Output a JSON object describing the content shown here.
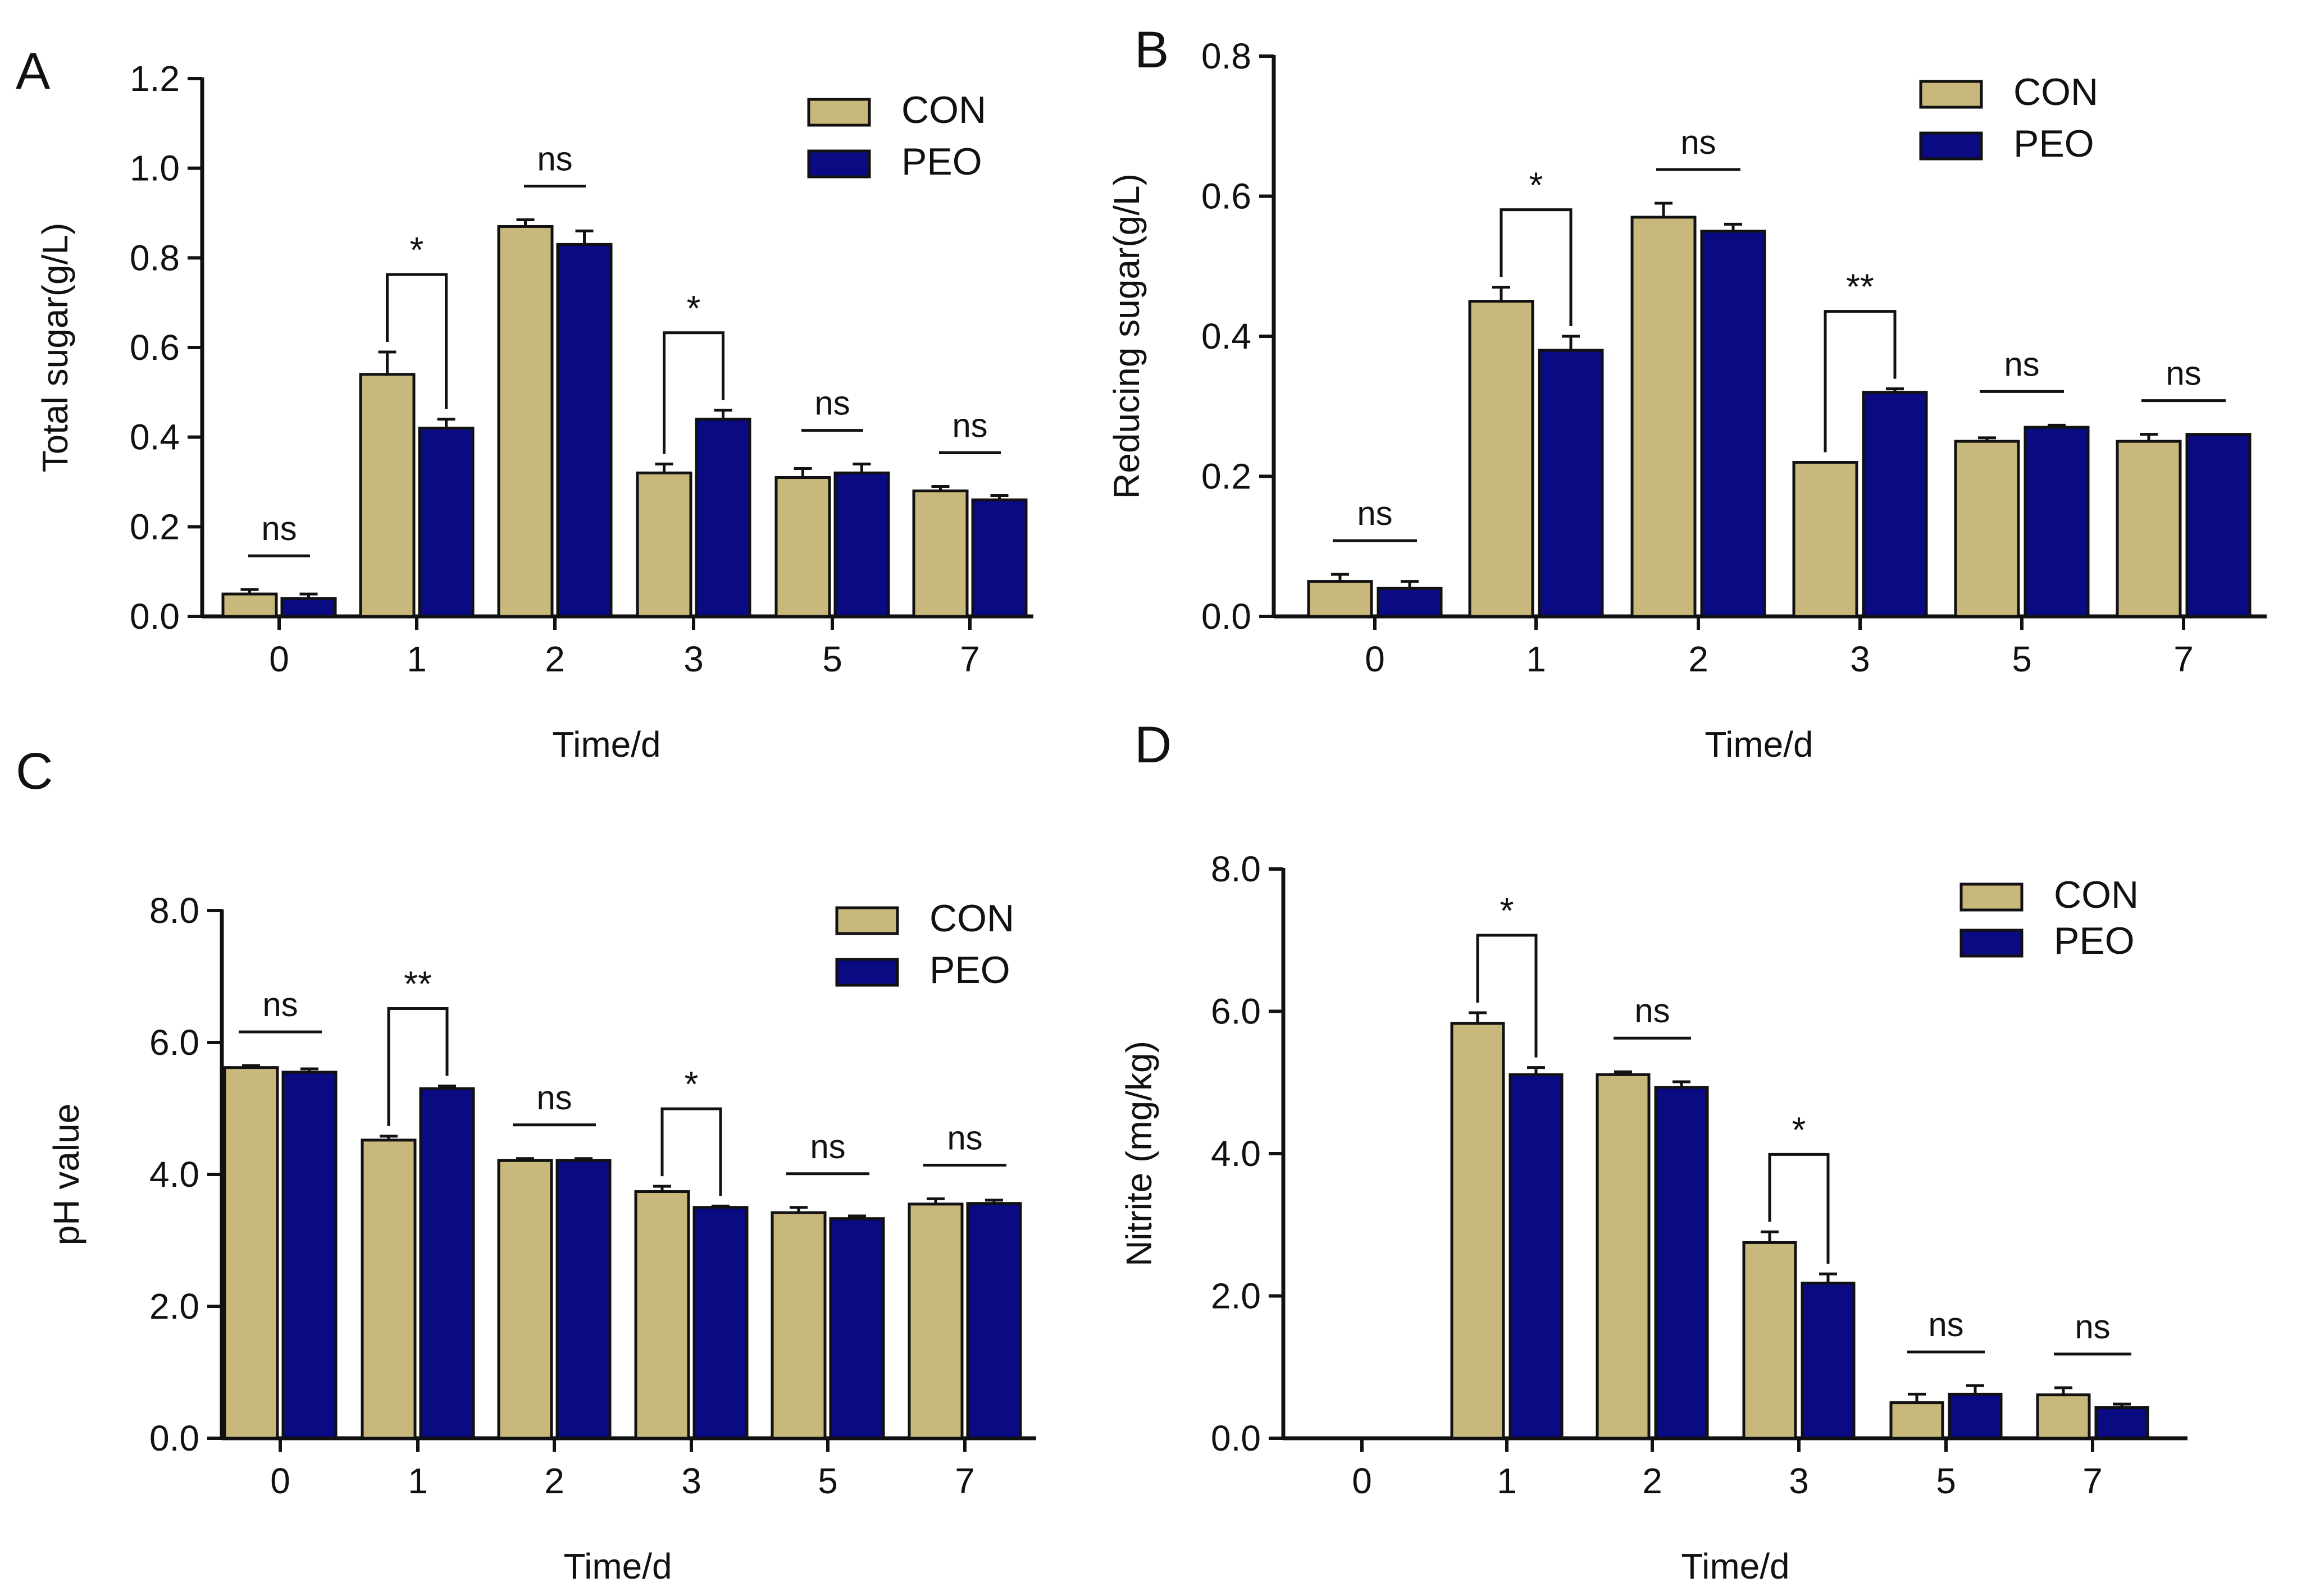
{
  "figure": {
    "colors": {
      "CON": "#C8B87C",
      "PEO": "#0A0A82",
      "axis": "#111111",
      "bar_edge": "#111111"
    },
    "legend_labels": [
      "CON",
      "PEO"
    ],
    "icons": [
      "bar-chart-icon"
    ]
  },
  "chart_data": [
    {
      "panel": "A",
      "type": "bar",
      "xlabel": "Time/d",
      "ylabel": "Total sugar(g/L)",
      "categories": [
        "0",
        "1",
        "2",
        "3",
        "5",
        "7"
      ],
      "ylim": [
        0,
        1.2
      ],
      "yticks": [
        "0.0",
        "0.2",
        "0.4",
        "0.6",
        "0.8",
        "1.0",
        "1.2"
      ],
      "legend": "top-right",
      "series": [
        {
          "name": "CON",
          "values": [
            0.05,
            0.54,
            0.87,
            0.32,
            0.31,
            0.28
          ],
          "errors": [
            0.01,
            0.05,
            0.015,
            0.02,
            0.02,
            0.01
          ]
        },
        {
          "name": "PEO",
          "values": [
            0.04,
            0.42,
            0.83,
            0.44,
            0.32,
            0.26
          ],
          "errors": [
            0.01,
            0.02,
            0.03,
            0.02,
            0.02,
            0.01
          ]
        }
      ],
      "significance": [
        "ns",
        "*",
        "ns",
        "*",
        "ns",
        "ns"
      ]
    },
    {
      "panel": "B",
      "type": "bar",
      "xlabel": "Time/d",
      "ylabel": "Reducing sugar(g/L)",
      "categories": [
        "0",
        "1",
        "2",
        "3",
        "5",
        "7"
      ],
      "ylim": [
        0,
        0.8
      ],
      "yticks": [
        "0.0",
        "0.2",
        "0.4",
        "0.6",
        "0.8"
      ],
      "legend": "top-right",
      "series": [
        {
          "name": "CON",
          "values": [
            0.05,
            0.45,
            0.57,
            0.22,
            0.25,
            0.25
          ],
          "errors": [
            0.01,
            0.02,
            0.02,
            0.0,
            0.005,
            0.01
          ]
        },
        {
          "name": "PEO",
          "values": [
            0.04,
            0.38,
            0.55,
            0.32,
            0.27,
            0.26
          ],
          "errors": [
            0.01,
            0.02,
            0.01,
            0.005,
            0.003,
            0.0
          ]
        }
      ],
      "significance": [
        "ns",
        "*",
        "ns",
        "**",
        "ns",
        "ns"
      ]
    },
    {
      "panel": "C",
      "type": "bar",
      "xlabel": "Time/d",
      "ylabel": "pH value",
      "categories": [
        "0",
        "1",
        "2",
        "3",
        "5",
        "7"
      ],
      "ylim": [
        0,
        8
      ],
      "yticks": [
        "0.0",
        "2.0",
        "4.0",
        "6.0",
        "8.0"
      ],
      "legend": "top-right",
      "series": [
        {
          "name": "CON",
          "values": [
            5.62,
            4.52,
            4.21,
            3.74,
            3.42,
            3.55
          ],
          "errors": [
            0.03,
            0.06,
            0.03,
            0.08,
            0.08,
            0.08
          ]
        },
        {
          "name": "PEO",
          "values": [
            5.55,
            5.3,
            4.21,
            3.5,
            3.33,
            3.56
          ],
          "errors": [
            0.05,
            0.04,
            0.03,
            0.02,
            0.04,
            0.05
          ]
        }
      ],
      "significance": [
        "ns",
        "**",
        "ns",
        "*",
        "ns",
        "ns"
      ]
    },
    {
      "panel": "D",
      "type": "bar",
      "xlabel": "Time/d",
      "ylabel": "Nitrite (mg/kg)",
      "categories": [
        "0",
        "1",
        "2",
        "3",
        "5",
        "7"
      ],
      "ylim": [
        0,
        8
      ],
      "yticks": [
        "0.0",
        "2.0",
        "4.0",
        "6.0",
        "8.0"
      ],
      "legend": "top-right",
      "series": [
        {
          "name": "CON",
          "values": [
            0,
            5.83,
            5.11,
            2.75,
            0.5,
            0.61
          ],
          "errors": [
            0,
            0.15,
            0.04,
            0.15,
            0.12,
            0.1
          ]
        },
        {
          "name": "PEO",
          "values": [
            0,
            5.11,
            4.93,
            2.18,
            0.62,
            0.43
          ],
          "errors": [
            0,
            0.1,
            0.08,
            0.13,
            0.12,
            0.05
          ]
        }
      ],
      "significance": [
        "",
        "*",
        "ns",
        "*",
        "ns",
        "ns"
      ]
    }
  ]
}
